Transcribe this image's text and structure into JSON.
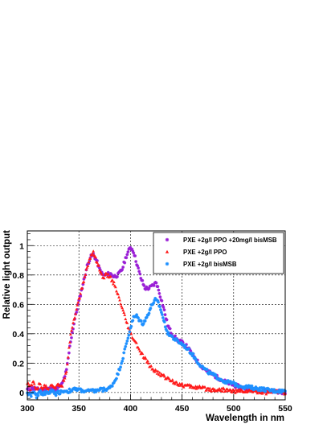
{
  "chart_data": {
    "type": "scatter",
    "title": "",
    "xlabel": "Wavelength in nm",
    "ylabel": "Relative light output",
    "xlim": [
      300,
      550
    ],
    "ylim": [
      -0.05,
      1.1
    ],
    "xticks": [
      300,
      350,
      400,
      450,
      500,
      550
    ],
    "yticks": [
      0,
      0.2,
      0.4,
      0.6,
      0.8,
      1
    ],
    "ytick_labels": [
      "0",
      "0.2",
      "0.4",
      "0.6",
      "0.8",
      "1"
    ],
    "grid": true,
    "legend_position": "top-right",
    "series": [
      {
        "name": "PXE +2g/l PPO +20mg/l bisMSB",
        "color": "#9a1fd6",
        "marker": "star",
        "points": [
          [
            300,
            0.02
          ],
          [
            305,
            0.03
          ],
          [
            310,
            0.02
          ],
          [
            315,
            0.02
          ],
          [
            320,
            0.03
          ],
          [
            325,
            0.02
          ],
          [
            330,
            0.03
          ],
          [
            334,
            0.06
          ],
          [
            338,
            0.15
          ],
          [
            342,
            0.35
          ],
          [
            346,
            0.5
          ],
          [
            350,
            0.62
          ],
          [
            354,
            0.74
          ],
          [
            358,
            0.86
          ],
          [
            361,
            0.92
          ],
          [
            364,
            0.94
          ],
          [
            367,
            0.9
          ],
          [
            370,
            0.84
          ],
          [
            373,
            0.8
          ],
          [
            376,
            0.8
          ],
          [
            380,
            0.81
          ],
          [
            384,
            0.79
          ],
          [
            388,
            0.8
          ],
          [
            392,
            0.84
          ],
          [
            396,
            0.93
          ],
          [
            400,
            0.99
          ],
          [
            403,
            0.96
          ],
          [
            406,
            0.88
          ],
          [
            410,
            0.78
          ],
          [
            414,
            0.71
          ],
          [
            418,
            0.71
          ],
          [
            422,
            0.73
          ],
          [
            425,
            0.75
          ],
          [
            428,
            0.68
          ],
          [
            432,
            0.58
          ],
          [
            436,
            0.46
          ],
          [
            440,
            0.4
          ],
          [
            445,
            0.36
          ],
          [
            450,
            0.34
          ],
          [
            455,
            0.31
          ],
          [
            460,
            0.26
          ],
          [
            465,
            0.21
          ],
          [
            470,
            0.17
          ],
          [
            480,
            0.12
          ],
          [
            490,
            0.08
          ],
          [
            500,
            0.05
          ],
          [
            510,
            0.03
          ],
          [
            520,
            0.02
          ],
          [
            530,
            0.01
          ],
          [
            540,
            0.01
          ],
          [
            550,
            0.0
          ]
        ]
      },
      {
        "name": "PXE +2g/l PPO",
        "color": "#ff1a1a",
        "marker": "triangle",
        "points": [
          [
            300,
            0.06
          ],
          [
            303,
            0.03
          ],
          [
            306,
            0.07
          ],
          [
            309,
            0.02
          ],
          [
            312,
            0.06
          ],
          [
            315,
            0.03
          ],
          [
            318,
            0.05
          ],
          [
            321,
            0.02
          ],
          [
            324,
            0.06
          ],
          [
            327,
            0.03
          ],
          [
            330,
            0.05
          ],
          [
            334,
            0.05
          ],
          [
            338,
            0.15
          ],
          [
            342,
            0.4
          ],
          [
            346,
            0.52
          ],
          [
            350,
            0.63
          ],
          [
            354,
            0.74
          ],
          [
            358,
            0.85
          ],
          [
            361,
            0.92
          ],
          [
            364,
            0.96
          ],
          [
            367,
            0.9
          ],
          [
            370,
            0.84
          ],
          [
            373,
            0.78
          ],
          [
            376,
            0.8
          ],
          [
            380,
            0.79
          ],
          [
            384,
            0.74
          ],
          [
            388,
            0.66
          ],
          [
            392,
            0.57
          ],
          [
            396,
            0.48
          ],
          [
            400,
            0.4
          ],
          [
            405,
            0.34
          ],
          [
            410,
            0.27
          ],
          [
            415,
            0.22
          ],
          [
            420,
            0.17
          ],
          [
            425,
            0.14
          ],
          [
            430,
            0.12
          ],
          [
            440,
            0.08
          ],
          [
            450,
            0.05
          ],
          [
            460,
            0.04
          ],
          [
            470,
            0.03
          ],
          [
            480,
            0.02
          ],
          [
            490,
            0.02
          ],
          [
            500,
            0.01
          ],
          [
            510,
            0.01
          ],
          [
            520,
            0.01
          ],
          [
            530,
            0.0
          ],
          [
            540,
            0.01
          ],
          [
            550,
            0.0
          ]
        ]
      },
      {
        "name": "PXE +2g/l bisMSB",
        "color": "#1e90ff",
        "marker": "star",
        "points": [
          [
            300,
            0.0
          ],
          [
            303,
            -0.02
          ],
          [
            306,
            0.0
          ],
          [
            309,
            -0.03
          ],
          [
            312,
            0.01
          ],
          [
            315,
            -0.01
          ],
          [
            318,
            0.0
          ],
          [
            321,
            0.0
          ],
          [
            324,
            0.01
          ],
          [
            327,
            -0.01
          ],
          [
            330,
            0.0
          ],
          [
            335,
            0.01
          ],
          [
            340,
            0.01
          ],
          [
            345,
            0.02
          ],
          [
            350,
            0.02
          ],
          [
            355,
            0.01
          ],
          [
            360,
            0.01
          ],
          [
            365,
            0.01
          ],
          [
            370,
            0.02
          ],
          [
            375,
            0.02
          ],
          [
            380,
            0.03
          ],
          [
            384,
            0.07
          ],
          [
            388,
            0.13
          ],
          [
            392,
            0.22
          ],
          [
            396,
            0.33
          ],
          [
            400,
            0.44
          ],
          [
            403,
            0.51
          ],
          [
            406,
            0.52
          ],
          [
            409,
            0.49
          ],
          [
            412,
            0.47
          ],
          [
            415,
            0.5
          ],
          [
            418,
            0.55
          ],
          [
            421,
            0.6
          ],
          [
            424,
            0.63
          ],
          [
            427,
            0.61
          ],
          [
            430,
            0.55
          ],
          [
            433,
            0.47
          ],
          [
            436,
            0.41
          ],
          [
            440,
            0.38
          ],
          [
            445,
            0.35
          ],
          [
            450,
            0.33
          ],
          [
            455,
            0.3
          ],
          [
            460,
            0.26
          ],
          [
            465,
            0.21
          ],
          [
            470,
            0.17
          ],
          [
            475,
            0.14
          ],
          [
            480,
            0.12
          ],
          [
            490,
            0.08
          ],
          [
            500,
            0.06
          ],
          [
            510,
            0.04
          ],
          [
            520,
            0.03
          ],
          [
            530,
            0.02
          ],
          [
            540,
            0.01
          ],
          [
            550,
            0.01
          ]
        ]
      }
    ]
  }
}
